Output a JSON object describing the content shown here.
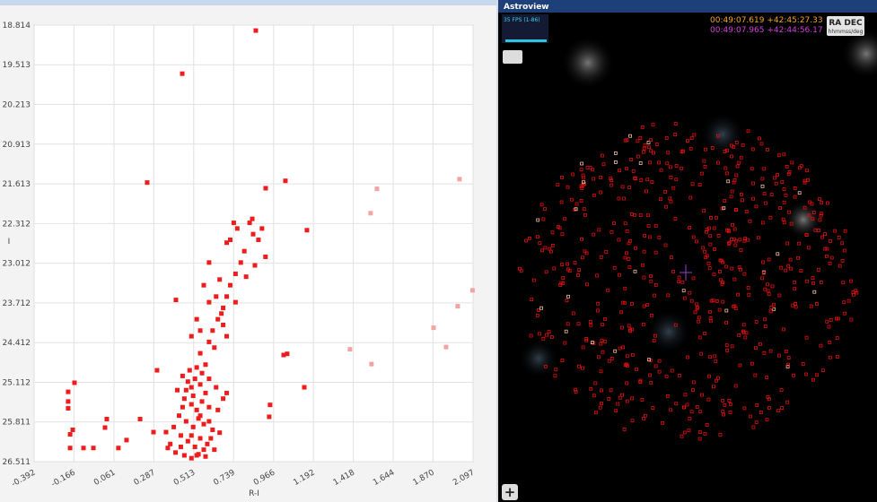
{
  "chart_data": {
    "type": "scatter",
    "x_label": "R-I",
    "y_label": "I",
    "xlim": [
      -0.392,
      2.097
    ],
    "ylim": [
      26.511,
      18.814
    ],
    "xticks": [
      -0.392,
      -0.166,
      0.061,
      0.287,
      0.513,
      0.739,
      0.966,
      1.192,
      1.418,
      1.644,
      {
        "value": 1.87,
        "label": "1.870"
      },
      2.097
    ],
    "yticks": [
      18.814,
      19.513,
      20.213,
      20.913,
      21.613,
      22.312,
      23.012,
      23.712,
      24.412,
      25.112,
      25.811,
      26.511
    ],
    "grid": true,
    "series": [
      {
        "color": "#ee1c1c",
        "x": [
          0.865,
          0.448,
          0.249,
          1.033,
          0.921,
          0.845,
          1.155,
          1.14,
          1.023,
          1.043,
          0.946,
          0.941,
          0.412,
          0.305,
          -0.163,
          -0.199,
          -0.199,
          -0.199,
          -0.173,
          -0.188,
          -0.188,
          -0.112,
          0.02,
          0.01,
          -0.056,
          0.086,
          0.209,
          0.132,
          0.285,
          0.356,
          0.366,
          0.55,
          0.6,
          0.62,
          0.65,
          0.68,
          0.7,
          0.72,
          0.66,
          0.75,
          0.78,
          0.8,
          0.72,
          0.7,
          0.76,
          0.74,
          0.83,
          0.85,
          0.88,
          0.9,
          0.92,
          0.86,
          0.81,
          0.68,
          0.63,
          0.7,
          0.58,
          0.67,
          0.6,
          0.64,
          0.75,
          0.57,
          0.53,
          0.5,
          0.55,
          0.6,
          0.45,
          0.48,
          0.5,
          0.52,
          0.55,
          0.58,
          0.46,
          0.5,
          0.53,
          0.56,
          0.6,
          0.43,
          0.47,
          0.51,
          0.54,
          0.57,
          0.62,
          0.44,
          0.48,
          0.52,
          0.55,
          0.59,
          0.63,
          0.41,
          0.46,
          0.5,
          0.54,
          0.58,
          0.61,
          0.49,
          0.53,
          0.56,
          0.6,
          0.64,
          0.42,
          0.45,
          0.65,
          0.68,
          0.7,
          0.66,
          0.4,
          0.38,
          0.57,
          0.51,
          0.47,
          0.55,
          0.6,
          0.5,
          0.44,
          0.53
        ],
        "y": [
          18.91,
          19.67,
          21.59,
          21.56,
          21.69,
          22.23,
          22.43,
          25.2,
          24.63,
          24.61,
          25.51,
          25.72,
          23.66,
          24.9,
          25.12,
          25.28,
          25.45,
          25.57,
          25.95,
          26.03,
          26.27,
          26.27,
          25.76,
          25.91,
          26.27,
          26.27,
          25.76,
          26.13,
          25.99,
          25.99,
          26.27,
          24.6,
          24.4,
          24.2,
          24.0,
          23.8,
          23.6,
          23.4,
          23.3,
          23.2,
          23.0,
          22.8,
          22.6,
          22.65,
          22.4,
          22.3,
          22.3,
          22.5,
          22.6,
          22.4,
          22.9,
          23.05,
          23.25,
          24.1,
          24.5,
          24.3,
          24.8,
          23.9,
          23.0,
          23.6,
          23.7,
          23.4,
          24.0,
          24.3,
          24.2,
          23.7,
          25.0,
          25.1,
          25.2,
          25.05,
          25.15,
          25.3,
          25.4,
          25.5,
          25.6,
          25.45,
          25.55,
          25.7,
          25.8,
          25.9,
          25.75,
          25.85,
          25.95,
          26.05,
          26.15,
          26.25,
          26.1,
          26.2,
          26.3,
          26.35,
          26.4,
          26.45,
          26.38,
          26.42,
          26.1,
          24.9,
          24.85,
          24.95,
          25.05,
          25.2,
          25.25,
          25.55,
          25.6,
          25.4,
          25.3,
          26.0,
          25.9,
          26.2,
          26.3,
          25.35,
          25.25,
          25.7,
          25.8,
          26.05,
          26.25,
          26.4
        ]
      },
      {
        "color": "#f4a3a3",
        "x": [
          1.552,
          1.516,
          2.02,
          2.094,
          2.01,
          1.873,
          1.944,
          1.399,
          1.521
        ],
        "y": [
          21.7,
          22.13,
          21.53,
          23.49,
          23.77,
          24.15,
          24.49,
          24.53,
          24.79
        ]
      }
    ]
  },
  "astroview": {
    "title": "Astroview",
    "fps": "35 FPS (1-86)",
    "cursor_coords": "00:49:07.619 +42:45:27.33",
    "center_coords": "00:49:07.965 +42:44:56.17",
    "coord_button": "RA DEC",
    "coord_units": "hhmmss/deg",
    "zoom_button": "+"
  }
}
